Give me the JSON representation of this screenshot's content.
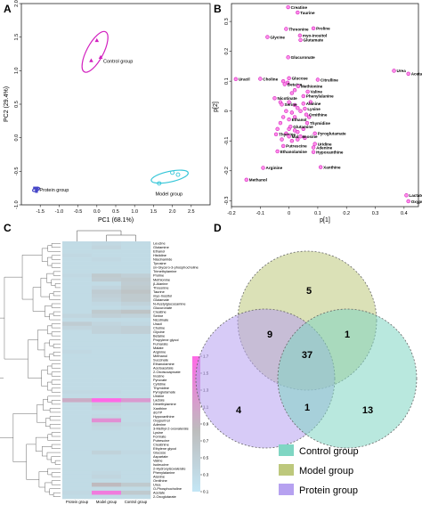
{
  "panel_labels": {
    "a": "A",
    "b": "B",
    "c": "C",
    "d": "D"
  },
  "chart_data": [
    {
      "type": "scatter",
      "panel": "A",
      "xlabel": "PC1 (68.1%)",
      "ylabel": "PC2 (29.4%)",
      "xlim": [
        -2,
        3
      ],
      "ylim": [
        -1.0,
        2.0
      ],
      "xticks": [
        "-1.5",
        "-1.0",
        "-0.5",
        "0.0",
        "0.5",
        "1.0",
        "1.5",
        "2.0",
        "2.5"
      ],
      "yticks": [
        "-1.0",
        "-0.5",
        "0.0",
        "0.5",
        "1.0",
        "1.5",
        "2.0"
      ],
      "groups": [
        {
          "label": "Control group",
          "color": "#d21fbf",
          "marker": "triangle",
          "points": [
            [
              0.0,
              1.45
            ],
            [
              -0.15,
              1.15
            ],
            [
              0.1,
              1.2
            ]
          ],
          "ellipse": {
            "cx": -0.05,
            "cy": 1.28,
            "rx": 0.6,
            "ry": 0.22,
            "angle": 62
          }
        },
        {
          "label": "Protein group",
          "color": "#4646c8",
          "marker": "square",
          "points": [
            [
              -1.65,
              -0.75
            ],
            [
              -1.6,
              -0.8
            ],
            [
              -1.58,
              -0.75
            ],
            [
              -1.6,
              -0.78
            ]
          ],
          "ellipse": {
            "cx": -1.61,
            "cy": -0.77,
            "rx": 0.1,
            "ry": 0.045,
            "angle": 20
          }
        },
        {
          "label": "Model group",
          "color": "#35c6d8",
          "marker": "circle",
          "points": [
            [
              1.65,
              -0.68
            ],
            [
              2.0,
              -0.52
            ],
            [
              2.15,
              -0.55
            ]
          ],
          "ellipse": {
            "cx": 1.93,
            "cy": -0.58,
            "rx": 0.5,
            "ry": 0.14,
            "angle": 12
          }
        }
      ]
    },
    {
      "type": "scatter",
      "panel": "B",
      "xlabel": "p[1]",
      "ylabel": "p[2]",
      "xlim": [
        -0.2,
        0.45
      ],
      "ylim": [
        -0.32,
        0.36
      ],
      "xticks": [
        "-0.2",
        "-0.1",
        "0",
        "0.1",
        "0.2",
        "0.3",
        "0.4"
      ],
      "yticks": [
        "-0.3",
        "-0.2",
        "-0.1",
        "0",
        "0.1",
        "0.2",
        "0.3"
      ],
      "color": "#d21fbf",
      "points": [
        {
          "label": "Creatine",
          "x": -0.003,
          "y": 0.348
        },
        {
          "label": "Taurine",
          "x": 0.03,
          "y": 0.33
        },
        {
          "label": "Threonine",
          "x": -0.01,
          "y": 0.275
        },
        {
          "label": "Proline",
          "x": 0.085,
          "y": 0.277
        },
        {
          "label": "Glycine",
          "x": -0.075,
          "y": 0.248
        },
        {
          "label": "myo-Inositol",
          "x": 0.038,
          "y": 0.253
        },
        {
          "label": "Glutamate",
          "x": 0.04,
          "y": 0.238
        },
        {
          "label": "Glucuronate",
          "x": -0.003,
          "y": 0.18
        },
        {
          "label": "Urea",
          "x": 0.365,
          "y": 0.135
        },
        {
          "label": "Acetate",
          "x": 0.415,
          "y": 0.125
        },
        {
          "label": "Uracil",
          "x": -0.185,
          "y": 0.107
        },
        {
          "label": "Choline",
          "x": -0.1,
          "y": 0.108
        },
        {
          "label": "Glucose",
          "x": 0.0,
          "y": 0.11
        },
        {
          "label": "Citrulline",
          "x": 0.1,
          "y": 0.105
        },
        {
          "label": "Betaine",
          "x": -0.015,
          "y": 0.09
        },
        {
          "label": "Methionine",
          "x": 0.032,
          "y": 0.083
        },
        {
          "label": "Valine",
          "x": 0.065,
          "y": 0.065
        },
        {
          "label": "Phenylalanine",
          "x": 0.05,
          "y": 0.05
        },
        {
          "label": "Nicotinate",
          "x": -0.05,
          "y": 0.043
        },
        {
          "label": "Serine",
          "x": -0.025,
          "y": 0.022
        },
        {
          "label": "Alanine",
          "x": 0.05,
          "y": 0.025
        },
        {
          "label": "Lysine",
          "x": 0.055,
          "y": 0.008
        },
        {
          "label": "Ornithine",
          "x": 0.06,
          "y": -0.012
        },
        {
          "label": "Ethanol",
          "x": 0.0,
          "y": -0.028
        },
        {
          "label": "Thymidine",
          "x": 0.063,
          "y": -0.04
        },
        {
          "label": "Glutamine",
          "x": 0.005,
          "y": -0.052
        },
        {
          "label": "Thymine",
          "x": -0.045,
          "y": -0.078
        },
        {
          "label": "Malate",
          "x": 0.0,
          "y": -0.085
        },
        {
          "label": "Inosine",
          "x": 0.04,
          "y": -0.085
        },
        {
          "label": "Pyroglutamate",
          "x": 0.09,
          "y": -0.075
        },
        {
          "label": "Uridine",
          "x": 0.09,
          "y": -0.11
        },
        {
          "label": "Putrescine",
          "x": -0.02,
          "y": -0.117
        },
        {
          "label": "Adenine",
          "x": 0.085,
          "y": -0.122
        },
        {
          "label": "Ethanolamine",
          "x": -0.04,
          "y": -0.135
        },
        {
          "label": "Hypoxanthine",
          "x": 0.085,
          "y": -0.137
        },
        {
          "label": "Arginine",
          "x": -0.09,
          "y": -0.19
        },
        {
          "label": "Xanthine",
          "x": 0.11,
          "y": -0.188
        },
        {
          "label": "Methanol",
          "x": -0.148,
          "y": -0.23
        },
        {
          "label": "Lactate",
          "x": 0.408,
          "y": -0.282
        },
        {
          "label": "Oxypurinol",
          "x": 0.415,
          "y": -0.302
        }
      ],
      "cluster": [
        [
          -0.02,
          0.1
        ],
        [
          -0.005,
          0.095
        ],
        [
          0.02,
          0.07
        ],
        [
          0.01,
          0.06
        ],
        [
          -0.03,
          0.03
        ],
        [
          0.0,
          0.03
        ],
        [
          0.02,
          0.02
        ],
        [
          0.03,
          0.01
        ],
        [
          -0.01,
          0.0
        ],
        [
          0.01,
          -0.005
        ],
        [
          0.04,
          0.0
        ],
        [
          0.02,
          -0.02
        ],
        [
          -0.02,
          -0.02
        ],
        [
          -0.03,
          -0.04
        ],
        [
          0.0,
          -0.06
        ],
        [
          0.02,
          -0.065
        ],
        [
          -0.01,
          -0.075
        ],
        [
          0.03,
          -0.07
        ],
        [
          0.05,
          -0.06
        ],
        [
          -0.025,
          -0.095
        ],
        [
          0.01,
          -0.1
        ],
        [
          0.03,
          -0.095
        ],
        [
          0.055,
          -0.09
        ],
        [
          -0.04,
          -0.06
        ],
        [
          0.07,
          -0.02
        ],
        [
          0.075,
          0.03
        ]
      ]
    },
    {
      "type": "heatmap",
      "panel": "C",
      "columns": [
        "Protein group",
        "Model group",
        "Control group"
      ],
      "rows": [
        "Leucine",
        "Glutamine",
        "Ethanol",
        "Histidine",
        "Niacinamide",
        "Tyrosine",
        "sn-Glycero-3-phosphocholine",
        "Trimethylamine",
        "Proline",
        "Methionine",
        "β-Alanine",
        "Threonine",
        "Taurine",
        "myo-Inositol",
        "Glutamate",
        "N-Acetylglucosamine",
        "Glucuronate",
        "Creatine",
        "Serine",
        "Nicotinate",
        "Uracil",
        "Choline",
        "Glycine",
        "Betaine",
        "Propylene glycol",
        "Fumarate",
        "Malate",
        "Arginine",
        "Methanol",
        "Succinate",
        "Ethanolamine",
        "Acetoacetate",
        "2-Oxoisocaproate",
        "Inosine",
        "Pyruvate",
        "Cytidine",
        "Thymidine",
        "Pyroglutamate",
        "Uridine",
        "Lactate",
        "Dimethylamine",
        "Xanthine",
        "dGTP",
        "Hypoxanthine",
        "Oxypurinol",
        "Adenine",
        "3-Methyl-2-oxovalerate",
        "Lysine",
        "Formate",
        "Putrescine",
        "Creatinine",
        "Ethylene glycol",
        "Glucose",
        "Aspartate",
        "Valine",
        "Isoleucine",
        "2-Hydroxyisovalerate",
        "Phenylalanine",
        "Alanine",
        "Ornithine",
        "Urea",
        "O-Phosphocholine",
        "Acetate",
        "2-Oxoglutarate"
      ],
      "values": [
        [
          0.3,
          0.35,
          0.3
        ],
        [
          0.3,
          0.4,
          0.3
        ],
        [
          0.3,
          0.3,
          0.3
        ],
        [
          0.35,
          0.3,
          0.3
        ],
        [
          0.3,
          0.35,
          0.3
        ],
        [
          0.3,
          0.3,
          0.3
        ],
        [
          0.3,
          0.3,
          0.3
        ],
        [
          0.3,
          0.3,
          0.3
        ],
        [
          0.35,
          0.6,
          0.5
        ],
        [
          0.3,
          0.55,
          0.6
        ],
        [
          0.3,
          0.3,
          0.55
        ],
        [
          0.3,
          0.4,
          0.6
        ],
        [
          0.3,
          0.55,
          0.7
        ],
        [
          0.3,
          0.5,
          0.6
        ],
        [
          0.3,
          0.45,
          0.6
        ],
        [
          0.3,
          0.35,
          0.45
        ],
        [
          0.3,
          0.3,
          0.35
        ],
        [
          0.3,
          0.6,
          0.7
        ],
        [
          0.4,
          0.5,
          0.45
        ],
        [
          0.3,
          0.3,
          0.3
        ],
        [
          0.55,
          0.4,
          0.35
        ],
        [
          0.4,
          0.45,
          0.5
        ],
        [
          0.3,
          0.45,
          0.5
        ],
        [
          0.3,
          0.3,
          0.3
        ],
        [
          0.3,
          0.3,
          0.3
        ],
        [
          0.3,
          0.3,
          0.3
        ],
        [
          0.3,
          0.3,
          0.3
        ],
        [
          0.35,
          0.3,
          0.3
        ],
        [
          0.3,
          0.3,
          0.3
        ],
        [
          0.3,
          0.3,
          0.3
        ],
        [
          0.3,
          0.3,
          0.3
        ],
        [
          0.3,
          0.3,
          0.3
        ],
        [
          0.3,
          0.3,
          0.3
        ],
        [
          0.3,
          0.3,
          0.3
        ],
        [
          0.3,
          0.3,
          0.3
        ],
        [
          0.3,
          0.3,
          0.3
        ],
        [
          0.3,
          0.3,
          0.3
        ],
        [
          0.35,
          0.35,
          0.3
        ],
        [
          0.3,
          0.3,
          0.3
        ],
        [
          1.0,
          1.7,
          1.2
        ],
        [
          0.3,
          0.45,
          0.35
        ],
        [
          0.3,
          0.4,
          0.35
        ],
        [
          0.3,
          0.3,
          0.3
        ],
        [
          0.3,
          0.35,
          0.3
        ],
        [
          0.3,
          1.3,
          0.3
        ],
        [
          0.3,
          0.4,
          0.35
        ],
        [
          0.3,
          0.35,
          0.3
        ],
        [
          0.3,
          0.3,
          0.3
        ],
        [
          0.3,
          0.3,
          0.3
        ],
        [
          0.3,
          0.3,
          0.3
        ],
        [
          0.3,
          0.3,
          0.3
        ],
        [
          0.3,
          0.3,
          0.3
        ],
        [
          0.3,
          0.45,
          0.35
        ],
        [
          0.3,
          0.3,
          0.3
        ],
        [
          0.3,
          0.3,
          0.3
        ],
        [
          0.3,
          0.3,
          0.3
        ],
        [
          0.3,
          0.3,
          0.3
        ],
        [
          0.3,
          0.35,
          0.3
        ],
        [
          0.3,
          0.4,
          0.3
        ],
        [
          0.3,
          0.3,
          0.3
        ],
        [
          0.3,
          0.85,
          0.6
        ],
        [
          0.3,
          0.3,
          0.3
        ],
        [
          0.35,
          1.5,
          0.6
        ],
        [
          0.3,
          0.3,
          0.3
        ]
      ],
      "scale_ticks": [
        0.1,
        0.3,
        0.5,
        0.7,
        0.9,
        1.1,
        1.3,
        1.5,
        1.7
      ],
      "scale_colors": [
        "#c3e6f5",
        "#bdbdbd",
        "#ff69e6"
      ]
    },
    {
      "type": "venn",
      "panel": "D",
      "sets": [
        {
          "name": "Control group",
          "color": "#7fd6c3"
        },
        {
          "name": "Model group",
          "color": "#bdc87c"
        },
        {
          "name": "Protein group",
          "color": "#b6a1f0"
        }
      ],
      "regions": {
        "model_only": 5,
        "protein_only": 4,
        "control_only": 13,
        "model_protein": 9,
        "model_control": 1,
        "protein_control": 1,
        "all_three": 37
      }
    }
  ]
}
